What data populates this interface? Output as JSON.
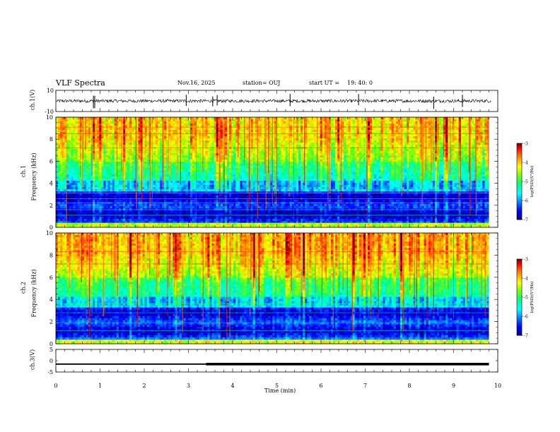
{
  "header": {
    "title": "VLF Spectra",
    "date": "Nov.16, 2025",
    "station": "station= OUJ",
    "start_label": "start  UT  =",
    "start_time": "19: 40: 0"
  },
  "chart_data": [
    {
      "type": "line",
      "name": "ch1-waveform",
      "ylabel": "ch.1(V)",
      "ylim": [
        -10,
        10
      ],
      "yticks": [
        "10",
        "-10"
      ],
      "xlim": [
        0,
        10
      ],
      "baseline": 0,
      "noise_band": [
        -1.5,
        1.5
      ],
      "spikes_min": [
        0.85,
        0.88,
        2.95,
        3.55,
        3.65,
        5.3,
        6.85,
        8.55,
        9.2
      ]
    },
    {
      "type": "heatmap",
      "name": "ch1-spectrogram",
      "ylabel_channel": "ch.1",
      "ylabel": "Frequency (kHz)",
      "ylim": [
        0,
        10
      ],
      "yticks": [
        "0",
        "2",
        "4",
        "6",
        "8",
        "10"
      ],
      "xlim": [
        0,
        9.8
      ],
      "colorbar": {
        "range": [
          -7,
          -3
        ],
        "ticks": [
          "-3",
          "-4",
          "-5",
          "-6",
          "-7"
        ],
        "label": "log(PSD)(V²/Hz)"
      }
    },
    {
      "type": "heatmap",
      "name": "ch2-spectrogram",
      "ylabel_channel": "ch.2",
      "ylabel": "Frequency (kHz)",
      "ylim": [
        0,
        10
      ],
      "yticks": [
        "0",
        "2",
        "4",
        "6",
        "8",
        "10"
      ],
      "xlim": [
        0,
        9.8
      ],
      "colorbar": {
        "range": [
          -7,
          -3
        ],
        "ticks": [
          "-3",
          "-4",
          "-5",
          "-6",
          "-7"
        ],
        "label": "log(PSD)(V²/Hz)"
      }
    },
    {
      "type": "line",
      "name": "ch3-trace",
      "ylabel": "ch.3(V)",
      "ylim": [
        -5,
        5
      ],
      "yticks": [
        "5",
        "0",
        "-5"
      ],
      "xlim": [
        0,
        10
      ],
      "x": [
        0,
        3.4,
        3.4,
        9.8
      ],
      "y": [
        -1.5,
        -1.5,
        -1.5,
        -1.5
      ]
    }
  ],
  "xaxis": {
    "label": "Time  (min)",
    "ticks": [
      "0",
      "1",
      "2",
      "3",
      "4",
      "5",
      "6",
      "7",
      "8",
      "9",
      "10"
    ],
    "range": [
      0,
      10
    ]
  },
  "colors": {
    "axis": "#000000",
    "colormap": [
      "#00007f",
      "#0000ff",
      "#00ffff",
      "#00ff7f",
      "#7fff00",
      "#ffff00",
      "#ff7f00",
      "#ff0000",
      "#7f0000"
    ]
  }
}
